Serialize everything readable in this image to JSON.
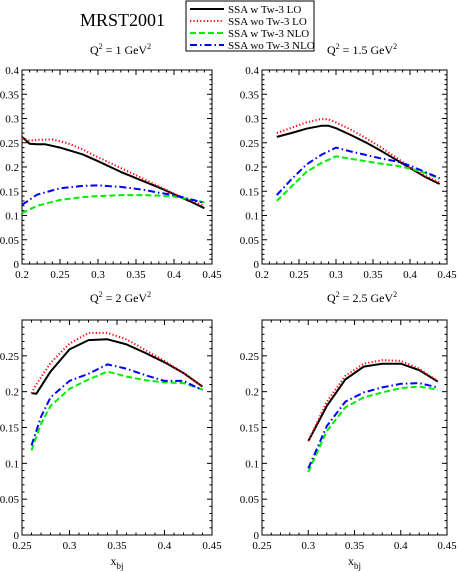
{
  "figure": {
    "title": "MRST2001",
    "legend": [
      {
        "label": "SSA w Tw-3 LO",
        "color": "#000000",
        "dash": "solid"
      },
      {
        "label": "SSA wo Tw-3 LO",
        "color": "#ff0000",
        "dash": "dotted"
      },
      {
        "label": "SSA w Tw-3 NLO",
        "color": "#00ee00",
        "dash": "dashed"
      },
      {
        "label": "SSA wo Tw-3 NLO",
        "color": "#0000ff",
        "dash": "dashdot"
      }
    ]
  },
  "chart_data": [
    {
      "type": "line",
      "q2_label": {
        "pre": "Q",
        "sup1": "2",
        "mid": " = 1 GeV",
        "sup2": "2"
      },
      "xlabel": "",
      "xlim": [
        0.2,
        0.45
      ],
      "ylim": [
        0,
        0.4
      ],
      "x_ticks": [
        "0.2",
        "0.25",
        "0.3",
        "0.35",
        "0.4",
        "0.45"
      ],
      "y_ticks": [
        "0",
        "0.05",
        "0.1",
        "0.15",
        "0.2",
        "0.25",
        "0.3",
        "0.35",
        "0.4"
      ],
      "series": [
        {
          "name": "SSA w Tw-3 LO",
          "points": [
            [
              0.2,
              0.262
            ],
            [
              0.21,
              0.248
            ],
            [
              0.22,
              0.247
            ],
            [
              0.23,
              0.247
            ],
            [
              0.25,
              0.24
            ],
            [
              0.28,
              0.226
            ],
            [
              0.3,
              0.212
            ],
            [
              0.33,
              0.19
            ],
            [
              0.35,
              0.177
            ],
            [
              0.38,
              0.158
            ],
            [
              0.4,
              0.144
            ],
            [
              0.42,
              0.13
            ],
            [
              0.44,
              0.115
            ]
          ]
        },
        {
          "name": "SSA wo Tw-3 LO",
          "points": [
            [
              0.2,
              0.26
            ],
            [
              0.21,
              0.254
            ],
            [
              0.22,
              0.256
            ],
            [
              0.24,
              0.257
            ],
            [
              0.26,
              0.249
            ],
            [
              0.28,
              0.236
            ],
            [
              0.3,
              0.22
            ],
            [
              0.33,
              0.198
            ],
            [
              0.35,
              0.183
            ],
            [
              0.38,
              0.16
            ],
            [
              0.4,
              0.145
            ],
            [
              0.42,
              0.132
            ],
            [
              0.44,
              0.12
            ]
          ]
        },
        {
          "name": "SSA w Tw-3 NLO",
          "points": [
            [
              0.2,
              0.105
            ],
            [
              0.22,
              0.12
            ],
            [
              0.25,
              0.132
            ],
            [
              0.28,
              0.138
            ],
            [
              0.3,
              0.14
            ],
            [
              0.33,
              0.142
            ],
            [
              0.36,
              0.142
            ],
            [
              0.38,
              0.141
            ],
            [
              0.4,
              0.139
            ],
            [
              0.42,
              0.134
            ],
            [
              0.44,
              0.127
            ]
          ]
        },
        {
          "name": "SSA wo Tw-3 NLO",
          "points": [
            [
              0.2,
              0.122
            ],
            [
              0.22,
              0.143
            ],
            [
              0.25,
              0.156
            ],
            [
              0.28,
              0.161
            ],
            [
              0.3,
              0.162
            ],
            [
              0.33,
              0.159
            ],
            [
              0.36,
              0.153
            ],
            [
              0.38,
              0.147
            ],
            [
              0.4,
              0.142
            ],
            [
              0.42,
              0.134
            ],
            [
              0.44,
              0.126
            ]
          ]
        }
      ]
    },
    {
      "type": "line",
      "q2_label": {
        "pre": "Q",
        "sup1": "2",
        "mid": " = 1.5 GeV",
        "sup2": "2"
      },
      "xlabel": "",
      "xlim": [
        0.2,
        0.45
      ],
      "ylim": [
        0,
        0.4
      ],
      "x_ticks": [
        "0.2",
        "0.25",
        "0.3",
        "0.35",
        "0.4",
        "0.45"
      ],
      "y_ticks": [
        "0",
        "0.05",
        "0.1",
        "0.15",
        "0.2",
        "0.25",
        "0.3",
        "0.35",
        "0.4"
      ],
      "series": [
        {
          "name": "SSA w Tw-3 LO",
          "points": [
            [
              0.22,
              0.262
            ],
            [
              0.24,
              0.27
            ],
            [
              0.26,
              0.279
            ],
            [
              0.28,
              0.285
            ],
            [
              0.29,
              0.285
            ],
            [
              0.3,
              0.28
            ],
            [
              0.32,
              0.266
            ],
            [
              0.34,
              0.251
            ],
            [
              0.36,
              0.234
            ],
            [
              0.38,
              0.216
            ],
            [
              0.4,
              0.198
            ],
            [
              0.42,
              0.18
            ],
            [
              0.44,
              0.165
            ]
          ]
        },
        {
          "name": "SSA wo Tw-3 LO",
          "points": [
            [
              0.22,
              0.27
            ],
            [
              0.24,
              0.281
            ],
            [
              0.26,
              0.292
            ],
            [
              0.28,
              0.299
            ],
            [
              0.29,
              0.298
            ],
            [
              0.3,
              0.292
            ],
            [
              0.32,
              0.277
            ],
            [
              0.34,
              0.26
            ],
            [
              0.36,
              0.241
            ],
            [
              0.38,
              0.221
            ],
            [
              0.4,
              0.2
            ],
            [
              0.42,
              0.182
            ],
            [
              0.44,
              0.168
            ]
          ]
        },
        {
          "name": "SSA w Tw-3 NLO",
          "points": [
            [
              0.22,
              0.13
            ],
            [
              0.24,
              0.16
            ],
            [
              0.26,
              0.19
            ],
            [
              0.28,
              0.208
            ],
            [
              0.3,
              0.222
            ],
            [
              0.32,
              0.217
            ],
            [
              0.34,
              0.212
            ],
            [
              0.36,
              0.207
            ],
            [
              0.38,
              0.203
            ],
            [
              0.4,
              0.197
            ],
            [
              0.42,
              0.188
            ],
            [
              0.44,
              0.176
            ]
          ]
        },
        {
          "name": "SSA wo Tw-3 NLO",
          "points": [
            [
              0.22,
              0.142
            ],
            [
              0.24,
              0.175
            ],
            [
              0.26,
              0.205
            ],
            [
              0.28,
              0.225
            ],
            [
              0.3,
              0.24
            ],
            [
              0.32,
              0.232
            ],
            [
              0.34,
              0.225
            ],
            [
              0.36,
              0.218
            ],
            [
              0.38,
              0.212
            ],
            [
              0.4,
              0.203
            ],
            [
              0.42,
              0.19
            ],
            [
              0.44,
              0.177
            ]
          ]
        }
      ]
    },
    {
      "type": "line",
      "q2_label": {
        "pre": "Q",
        "sup1": "2",
        "mid": " = 2 GeV",
        "sup2": "2"
      },
      "xlabel": "x",
      "xlabel_sub": "bj",
      "xlim": [
        0.25,
        0.45
      ],
      "ylim": [
        0,
        0.3
      ],
      "x_ticks": [
        "0.25",
        "0.3",
        "0.35",
        "0.4",
        "0.45"
      ],
      "y_ticks": [
        "0",
        "0.05",
        "0.1",
        "0.15",
        "0.2",
        "0.25"
      ],
      "series": [
        {
          "name": "SSA w Tw-3 LO",
          "points": [
            [
              0.26,
              0.198
            ],
            [
              0.265,
              0.197
            ],
            [
              0.28,
              0.228
            ],
            [
              0.3,
              0.259
            ],
            [
              0.32,
              0.272
            ],
            [
              0.34,
              0.273
            ],
            [
              0.36,
              0.266
            ],
            [
              0.38,
              0.254
            ],
            [
              0.4,
              0.241
            ],
            [
              0.42,
              0.226
            ],
            [
              0.44,
              0.207
            ]
          ]
        },
        {
          "name": "SSA wo Tw-3 LO",
          "points": [
            [
              0.26,
              0.198
            ],
            [
              0.265,
              0.21
            ],
            [
              0.28,
              0.24
            ],
            [
              0.3,
              0.267
            ],
            [
              0.32,
              0.282
            ],
            [
              0.34,
              0.282
            ],
            [
              0.36,
              0.273
            ],
            [
              0.38,
              0.258
            ],
            [
              0.4,
              0.243
            ],
            [
              0.42,
              0.226
            ],
            [
              0.44,
              0.207
            ]
          ]
        },
        {
          "name": "SSA w Tw-3 NLO",
          "points": [
            [
              0.26,
              0.118
            ],
            [
              0.27,
              0.155
            ],
            [
              0.28,
              0.18
            ],
            [
              0.3,
              0.204
            ],
            [
              0.32,
              0.217
            ],
            [
              0.34,
              0.228
            ],
            [
              0.36,
              0.221
            ],
            [
              0.38,
              0.216
            ],
            [
              0.4,
              0.213
            ],
            [
              0.42,
              0.212
            ],
            [
              0.44,
              0.203
            ]
          ]
        },
        {
          "name": "SSA wo Tw-3 NLO",
          "points": [
            [
              0.26,
              0.125
            ],
            [
              0.27,
              0.165
            ],
            [
              0.28,
              0.192
            ],
            [
              0.3,
              0.215
            ],
            [
              0.32,
              0.225
            ],
            [
              0.34,
              0.238
            ],
            [
              0.36,
              0.232
            ],
            [
              0.38,
              0.223
            ],
            [
              0.4,
              0.215
            ],
            [
              0.42,
              0.215
            ],
            [
              0.44,
              0.202
            ]
          ]
        }
      ]
    },
    {
      "type": "line",
      "q2_label": {
        "pre": "Q",
        "sup1": "2",
        "mid": " = 2.5 GeV",
        "sup2": "2"
      },
      "xlabel": "x",
      "xlabel_sub": "bj",
      "xlim": [
        0.25,
        0.45
      ],
      "ylim": [
        0,
        0.3
      ],
      "x_ticks": [
        "0.25",
        "0.3",
        "0.35",
        "0.4",
        "0.45"
      ],
      "y_ticks": [
        "0",
        "0.05",
        "0.1",
        "0.15",
        "0.2",
        "0.25"
      ],
      "series": [
        {
          "name": "SSA w Tw-3 LO",
          "points": [
            [
              0.3,
              0.131
            ],
            [
              0.32,
              0.18
            ],
            [
              0.34,
              0.217
            ],
            [
              0.36,
              0.235
            ],
            [
              0.38,
              0.239
            ],
            [
              0.4,
              0.239
            ],
            [
              0.42,
              0.23
            ],
            [
              0.44,
              0.214
            ]
          ]
        },
        {
          "name": "SSA wo Tw-3 LO",
          "points": [
            [
              0.3,
              0.131
            ],
            [
              0.32,
              0.186
            ],
            [
              0.34,
              0.222
            ],
            [
              0.36,
              0.239
            ],
            [
              0.38,
              0.244
            ],
            [
              0.4,
              0.243
            ],
            [
              0.42,
              0.232
            ],
            [
              0.44,
              0.215
            ]
          ]
        },
        {
          "name": "SSA w Tw-3 NLO",
          "points": [
            [
              0.3,
              0.088
            ],
            [
              0.32,
              0.145
            ],
            [
              0.34,
              0.178
            ],
            [
              0.36,
              0.192
            ],
            [
              0.38,
              0.199
            ],
            [
              0.4,
              0.205
            ],
            [
              0.42,
              0.207
            ],
            [
              0.44,
              0.203
            ]
          ]
        },
        {
          "name": "SSA wo Tw-3 NLO",
          "points": [
            [
              0.3,
              0.093
            ],
            [
              0.32,
              0.152
            ],
            [
              0.34,
              0.186
            ],
            [
              0.36,
              0.199
            ],
            [
              0.38,
              0.206
            ],
            [
              0.4,
              0.211
            ],
            [
              0.42,
              0.212
            ],
            [
              0.44,
              0.206
            ]
          ]
        }
      ]
    }
  ]
}
